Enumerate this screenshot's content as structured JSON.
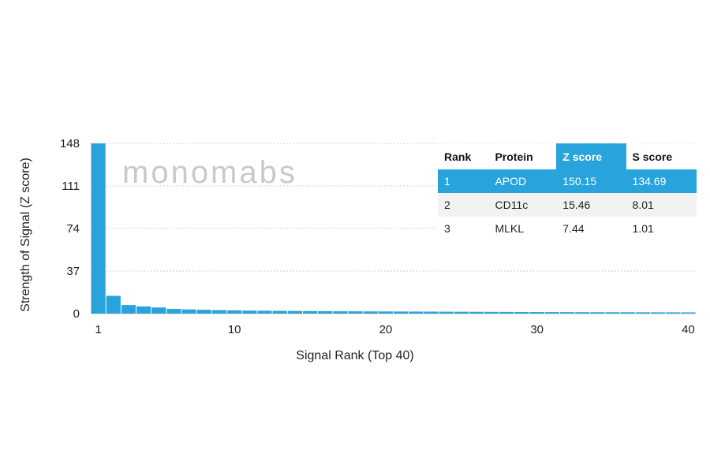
{
  "chart_data": {
    "type": "bar",
    "xlabel": "Signal Rank (Top 40)",
    "ylabel": "Strength of Signal (Z score)",
    "ylim": [
      0,
      148
    ],
    "yticks": [
      0,
      37,
      74,
      111,
      148
    ],
    "xticks": [
      1,
      10,
      20,
      30,
      40
    ],
    "grid": true,
    "bar_color": "#29a3dc",
    "categories": [
      1,
      2,
      3,
      4,
      5,
      6,
      7,
      8,
      9,
      10,
      11,
      12,
      13,
      14,
      15,
      16,
      17,
      18,
      19,
      20,
      21,
      22,
      23,
      24,
      25,
      26,
      27,
      28,
      29,
      30,
      31,
      32,
      33,
      34,
      35,
      36,
      37,
      38,
      39,
      40
    ],
    "values": [
      150.15,
      15.46,
      7.44,
      6.2,
      5.3,
      4.1,
      3.6,
      3.3,
      3.0,
      2.8,
      2.6,
      2.5,
      2.4,
      2.3,
      2.2,
      2.1,
      2.0,
      1.95,
      1.9,
      1.85,
      1.8,
      1.75,
      1.7,
      1.65,
      1.6,
      1.55,
      1.5,
      1.45,
      1.4,
      1.35,
      1.3,
      1.28,
      1.25,
      1.22,
      1.2,
      1.18,
      1.15,
      1.12,
      1.1,
      1.05
    ]
  },
  "watermark": "monomabs",
  "table": {
    "headers": [
      "Rank",
      "Protein",
      "Z score",
      "S score"
    ],
    "active_header": 2,
    "rows": [
      {
        "rank": "1",
        "protein": "APOD",
        "z": "150.15",
        "s": "134.69"
      },
      {
        "rank": "2",
        "protein": "CD11c",
        "z": "15.46",
        "s": "8.01"
      },
      {
        "rank": "3",
        "protein": "MLKL",
        "z": "7.44",
        "s": "1.01"
      }
    ]
  }
}
